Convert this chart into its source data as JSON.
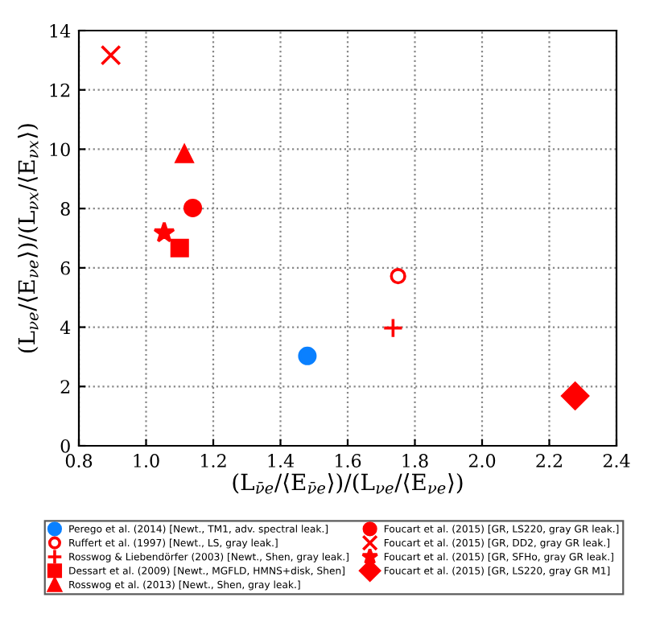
{
  "chart_data": {
    "type": "scatter",
    "xlabel": "(L$_{ν̄e}$/⟨E$_{ν̄e}$⟩)/(L$_{νe}$/⟨E$_{νe}$⟩)",
    "ylabel": "(L$_{νe}$/⟨E$_{νe}$⟩)/(L$_{νx}$/⟨E$_{νx}$⟩)",
    "xlim": [
      0.8,
      2.4
    ],
    "xticks": [
      0.8,
      {
        "value": 1,
        "label": "1.0"
      },
      1.2,
      1.4,
      1.6,
      1.8,
      {
        "value": 2,
        "label": "2.0"
      },
      2.2,
      2.4
    ],
    "ylim": [
      0,
      14
    ],
    "yticks": [
      0,
      2,
      4,
      6,
      8,
      10,
      12,
      14
    ],
    "grid": true,
    "legend": "bottom",
    "series": [
      {
        "name": "Perego et al. (2014) [Newt., TM1, adv. spectral leak.]",
        "color": "#0a80ff",
        "marker": "circle",
        "x": [
          1.48
        ],
        "values": [
          3.03
        ]
      },
      {
        "name": "Ruffert et al. (1997) [Newt., LS, gray leak.]",
        "color": "#ff0000",
        "marker": "circle-open",
        "x": [
          1.75
        ],
        "values": [
          5.72
        ]
      },
      {
        "name": "Rosswog & Liebendörfer (2003) [Newt., Shen, gray leak.]",
        "color": "#ff0000",
        "marker": "plus",
        "x": [
          1.735
        ],
        "values": [
          3.97
        ]
      },
      {
        "name": "Dessart et al. (2009) [Newt., MGFLD, HMNS+disk, Shen]",
        "color": "#ff0000",
        "marker": "square",
        "x": [
          1.1
        ],
        "values": [
          6.67
        ]
      },
      {
        "name": "Rosswog et al. (2013) [Newt., Shen, gray leak.]",
        "color": "#ff0000",
        "marker": "triangle",
        "x": [
          1.114
        ],
        "values": [
          9.84
        ]
      },
      {
        "name": "Foucart et al. (2015) [GR, LS220, gray GR leak.]",
        "color": "#ff0000",
        "marker": "circle",
        "x": [
          1.139
        ],
        "values": [
          8.02
        ]
      },
      {
        "name": "Foucart et al. (2015) [GR, DD2, gray GR leak.]",
        "color": "#ff0000",
        "marker": "cross",
        "x": [
          0.895
        ],
        "values": [
          13.17
        ]
      },
      {
        "name": "Foucart et al. (2015) [GR, SFHo, gray GR leak.]",
        "color": "#ff0000",
        "marker": "star",
        "x": [
          1.054
        ],
        "values": [
          7.18
        ]
      },
      {
        "name": "Foucart et al. (2015) [GR, LS220, gray GR M1]",
        "color": "#ff0000",
        "marker": "diamond",
        "x": [
          2.277
        ],
        "values": [
          1.68
        ]
      }
    ]
  }
}
